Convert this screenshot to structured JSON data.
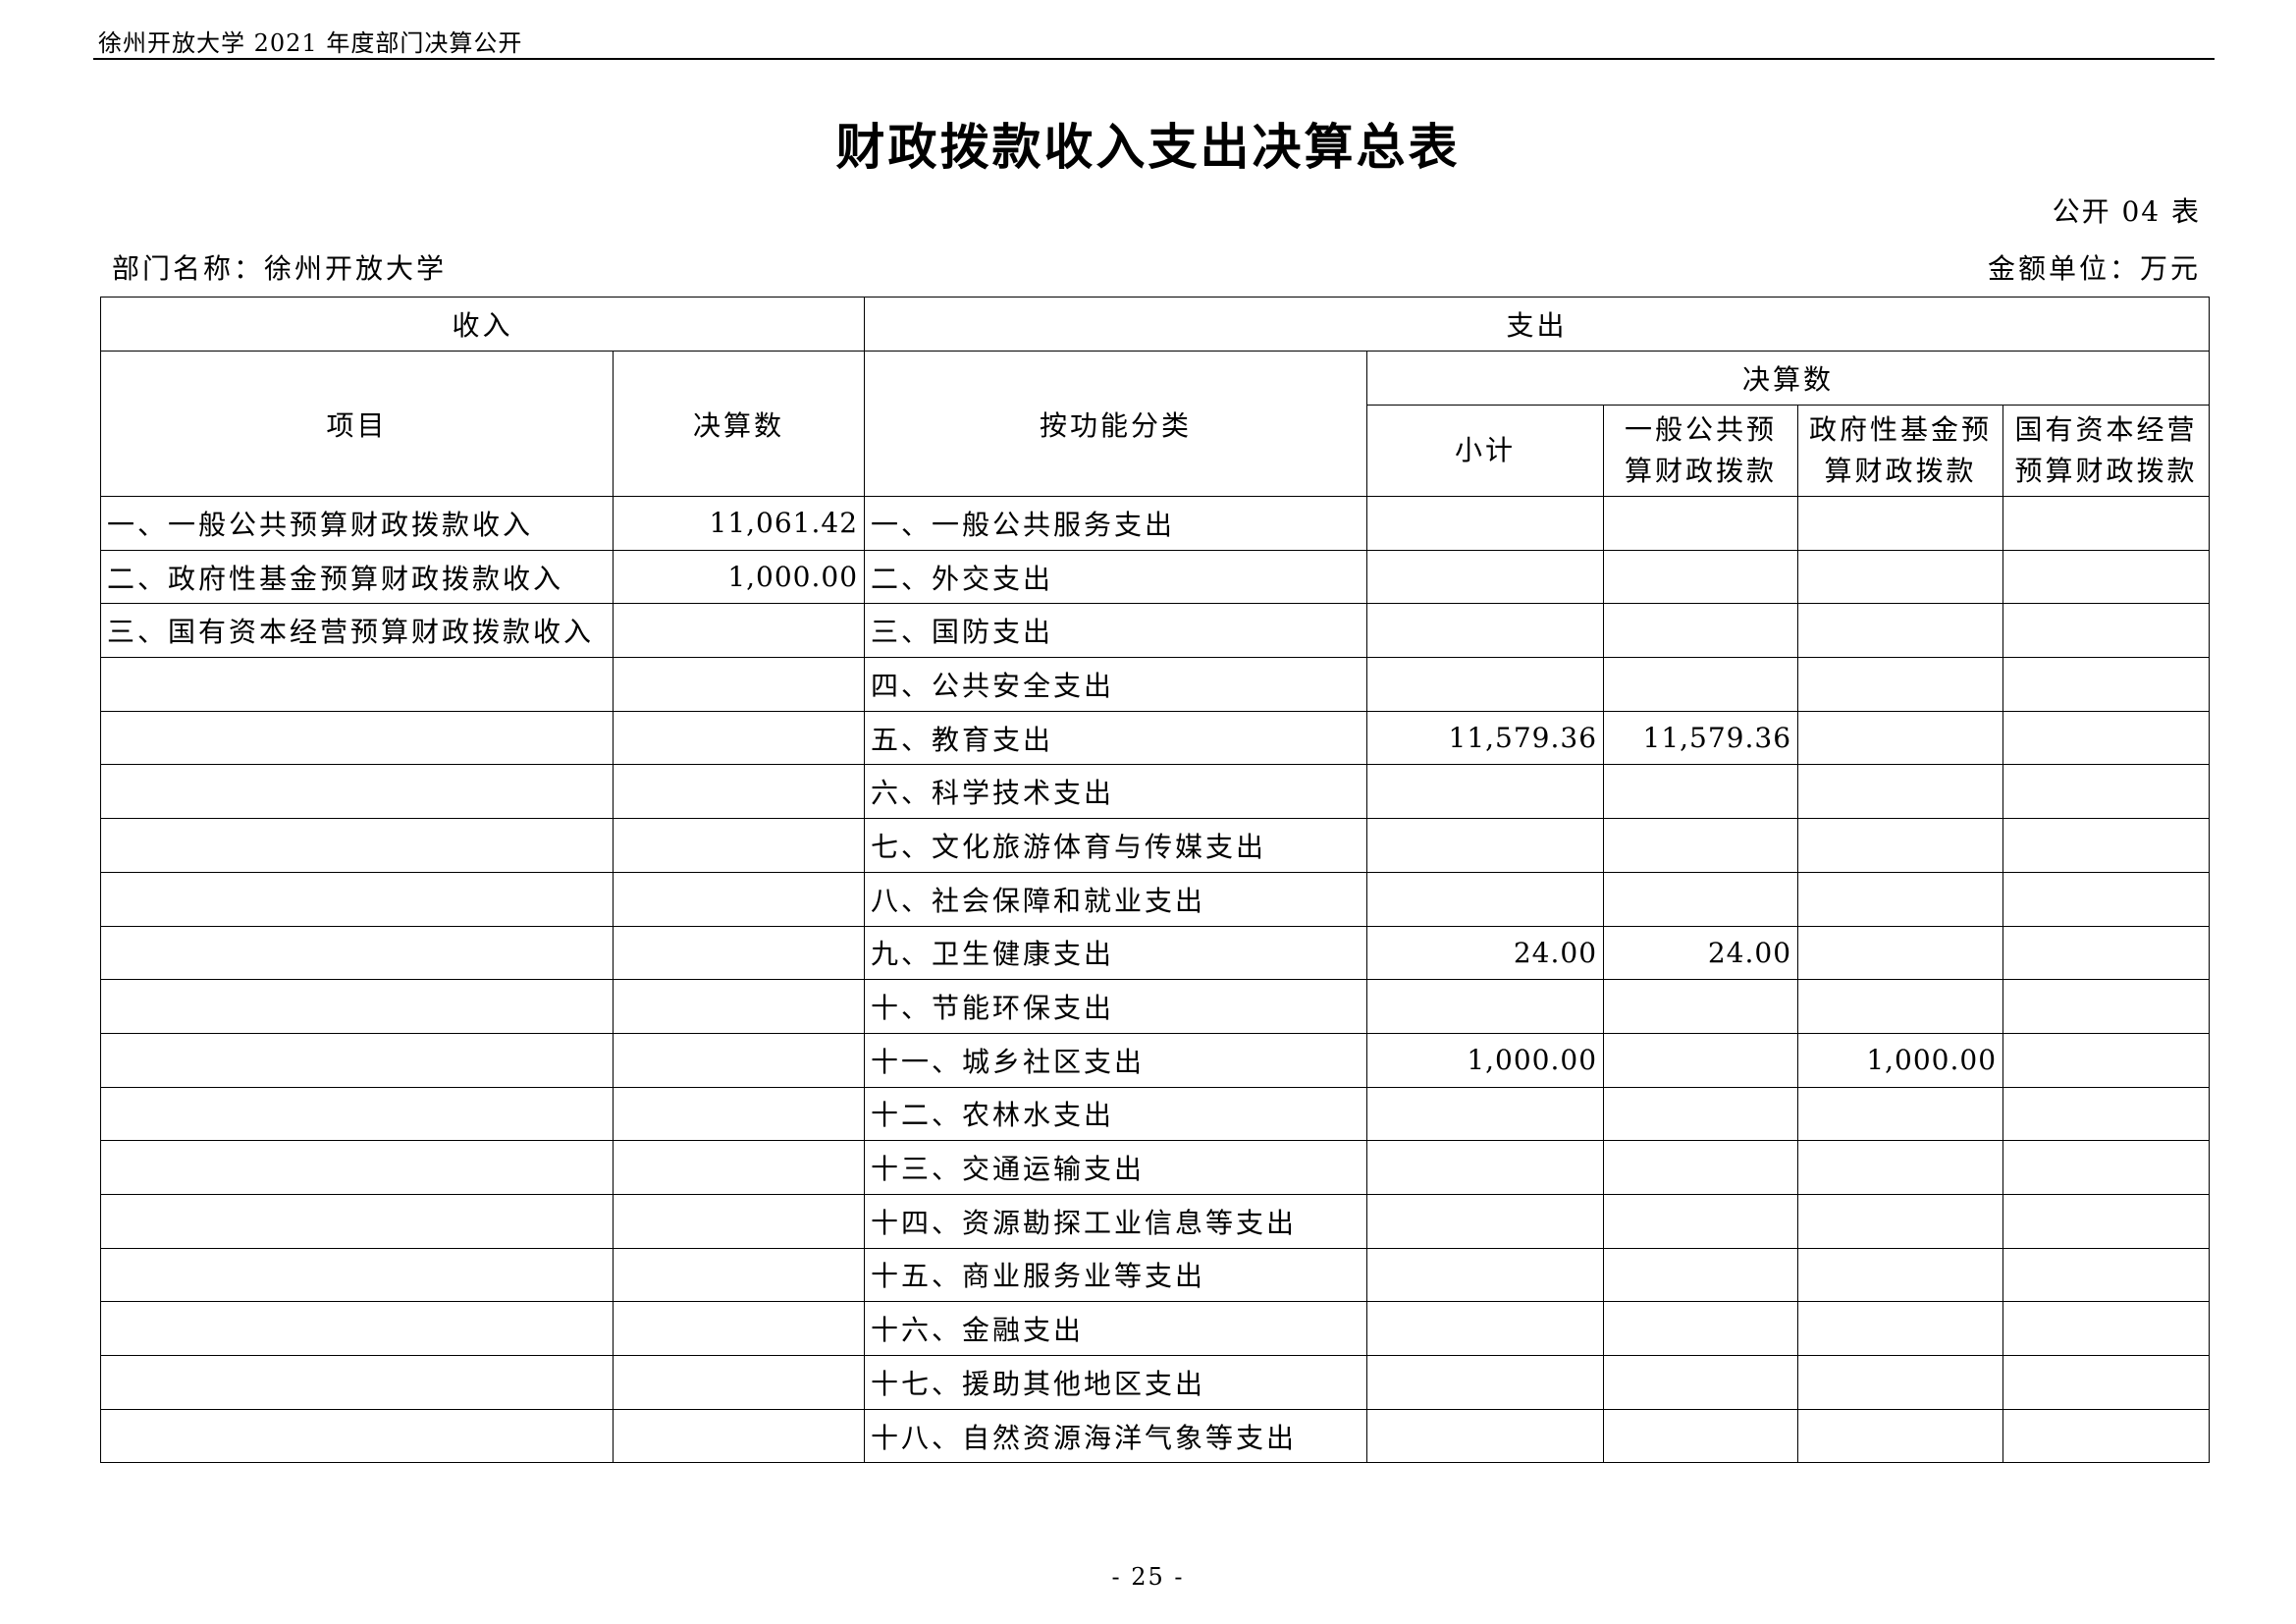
{
  "header": {
    "running_title": "徐州开放大学 2021 年度部门决算公开"
  },
  "title": "财政拨款收入支出决算总表",
  "table_no": "公开 04 表",
  "department": "部门名称：徐州开放大学",
  "unit": "金额单位：万元",
  "table": {
    "income_header": "收入",
    "expense_header": "支出",
    "col_item": "项目",
    "col_income_amount": "决算数",
    "col_function": "按功能分类",
    "col_final_group": "决算数",
    "col_subtotal": "小计",
    "col_general": "一般公共预算财政拨款",
    "col_fund": "政府性基金预算财政拨款",
    "col_state_capital": "国有资本经营预算财政拨款",
    "rows": [
      {
        "item": "一、一般公共预算财政拨款收入",
        "amount": "11,061.42",
        "function": "一、一般公共服务支出",
        "subtotal": "",
        "general": "",
        "fund": "",
        "capital": ""
      },
      {
        "item": "二、政府性基金预算财政拨款收入",
        "amount": "1,000.00",
        "function": "二、外交支出",
        "subtotal": "",
        "general": "",
        "fund": "",
        "capital": ""
      },
      {
        "item": "三、国有资本经营预算财政拨款收入",
        "amount": "",
        "function": "三、国防支出",
        "subtotal": "",
        "general": "",
        "fund": "",
        "capital": ""
      },
      {
        "item": "",
        "amount": "",
        "function": "四、公共安全支出",
        "subtotal": "",
        "general": "",
        "fund": "",
        "capital": ""
      },
      {
        "item": "",
        "amount": "",
        "function": "五、教育支出",
        "subtotal": "11,579.36",
        "general": "11,579.36",
        "fund": "",
        "capital": ""
      },
      {
        "item": "",
        "amount": "",
        "function": "六、科学技术支出",
        "subtotal": "",
        "general": "",
        "fund": "",
        "capital": ""
      },
      {
        "item": "",
        "amount": "",
        "function": "七、文化旅游体育与传媒支出",
        "subtotal": "",
        "general": "",
        "fund": "",
        "capital": ""
      },
      {
        "item": "",
        "amount": "",
        "function": "八、社会保障和就业支出",
        "subtotal": "",
        "general": "",
        "fund": "",
        "capital": ""
      },
      {
        "item": "",
        "amount": "",
        "function": "九、卫生健康支出",
        "subtotal": "24.00",
        "general": "24.00",
        "fund": "",
        "capital": ""
      },
      {
        "item": "",
        "amount": "",
        "function": "十、节能环保支出",
        "subtotal": "",
        "general": "",
        "fund": "",
        "capital": ""
      },
      {
        "item": "",
        "amount": "",
        "function": "十一、城乡社区支出",
        "subtotal": "1,000.00",
        "general": "",
        "fund": "1,000.00",
        "capital": ""
      },
      {
        "item": "",
        "amount": "",
        "function": "十二、农林水支出",
        "subtotal": "",
        "general": "",
        "fund": "",
        "capital": ""
      },
      {
        "item": "",
        "amount": "",
        "function": "十三、交通运输支出",
        "subtotal": "",
        "general": "",
        "fund": "",
        "capital": ""
      },
      {
        "item": "",
        "amount": "",
        "function": "十四、资源勘探工业信息等支出",
        "subtotal": "",
        "general": "",
        "fund": "",
        "capital": ""
      },
      {
        "item": "",
        "amount": "",
        "function": "十五、商业服务业等支出",
        "subtotal": "",
        "general": "",
        "fund": "",
        "capital": ""
      },
      {
        "item": "",
        "amount": "",
        "function": "十六、金融支出",
        "subtotal": "",
        "general": "",
        "fund": "",
        "capital": ""
      },
      {
        "item": "",
        "amount": "",
        "function": "十七、援助其他地区支出",
        "subtotal": "",
        "general": "",
        "fund": "",
        "capital": ""
      },
      {
        "item": "",
        "amount": "",
        "function": "十八、自然资源海洋气象等支出",
        "subtotal": "",
        "general": "",
        "fund": "",
        "capital": ""
      }
    ]
  },
  "page_number": "- 25 -"
}
